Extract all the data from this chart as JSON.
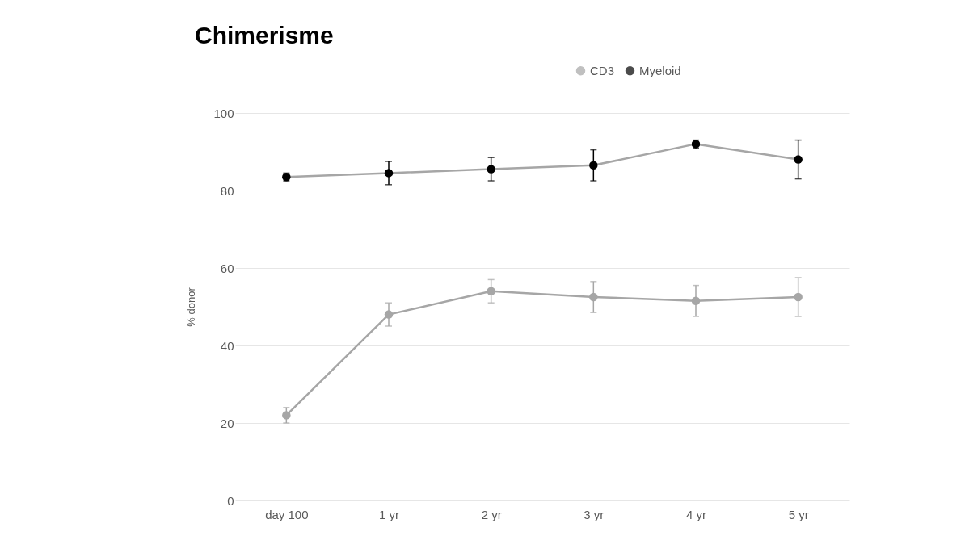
{
  "chart_data": {
    "type": "line",
    "title": "Chimerisme",
    "ylabel": "% donor",
    "categories": [
      "day 100",
      "1 yr",
      "2 yr",
      "3 yr",
      "4 yr",
      "5 yr"
    ],
    "series": [
      {
        "name": "CD3",
        "color": "#a6a6a6",
        "values": [
          22,
          48,
          54,
          52.5,
          51.5,
          52.5
        ],
        "errors": [
          2,
          3,
          3,
          4,
          4,
          5
        ]
      },
      {
        "name": "Myeloid",
        "color": "#000000",
        "values": [
          83.5,
          84.5,
          85.5,
          86.5,
          92,
          88
        ],
        "errors": [
          1,
          3,
          3,
          4,
          1,
          5
        ]
      }
    ],
    "ylim": [
      0,
      100
    ],
    "yticks": [
      0,
      20,
      40,
      60,
      80,
      100
    ],
    "grid": "y",
    "legend": "top right",
    "marker": "circle"
  }
}
